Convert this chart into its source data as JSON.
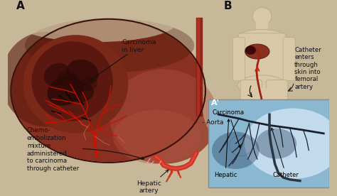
{
  "bg_color": "#c8b89a",
  "panel_A_label": "A",
  "panel_B_label": "B",
  "panel_Aprime_label": "A'",
  "liver_color": "#8a3020",
  "liver_highlight": "#a04535",
  "liver_shadow": "#5a1a10",
  "liver_right_color": "#9a4030",
  "tumor_outer": "#6a2010",
  "tumor_inner": "#4a1008",
  "tumor_dark": "#2a0805",
  "artery_red": "#cc1100",
  "artery_pink": "#dd6655",
  "aorta_color": "#8a1a10",
  "body_skin": "#d8c8a8",
  "body_outline": "#b8a888",
  "xray_bg_top": "#8ab8d0",
  "xray_bg_bot": "#4a7898",
  "xray_vessel": "#1a2030",
  "xray_vessel2": "#2a3545",
  "text_color": "#111111",
  "label_fontsize": 6.5,
  "annotations": {
    "carcinoma_in_liver": "Carcinoma\nin liver",
    "aorta": "- Aorta",
    "chemo": "Chemo-\nembolization\nmixture\nadministered\nto carcinoma\nthrough catheter",
    "hepatic": "Hepatic\nartery",
    "catheter_enters": "Catheter\nenters\nthrough\nskin into\nfemoral\nartery",
    "carcinoma_xray": "Carcinoma",
    "hepatic_xray": "Hepatic",
    "catheter_xray": "Catheter"
  }
}
